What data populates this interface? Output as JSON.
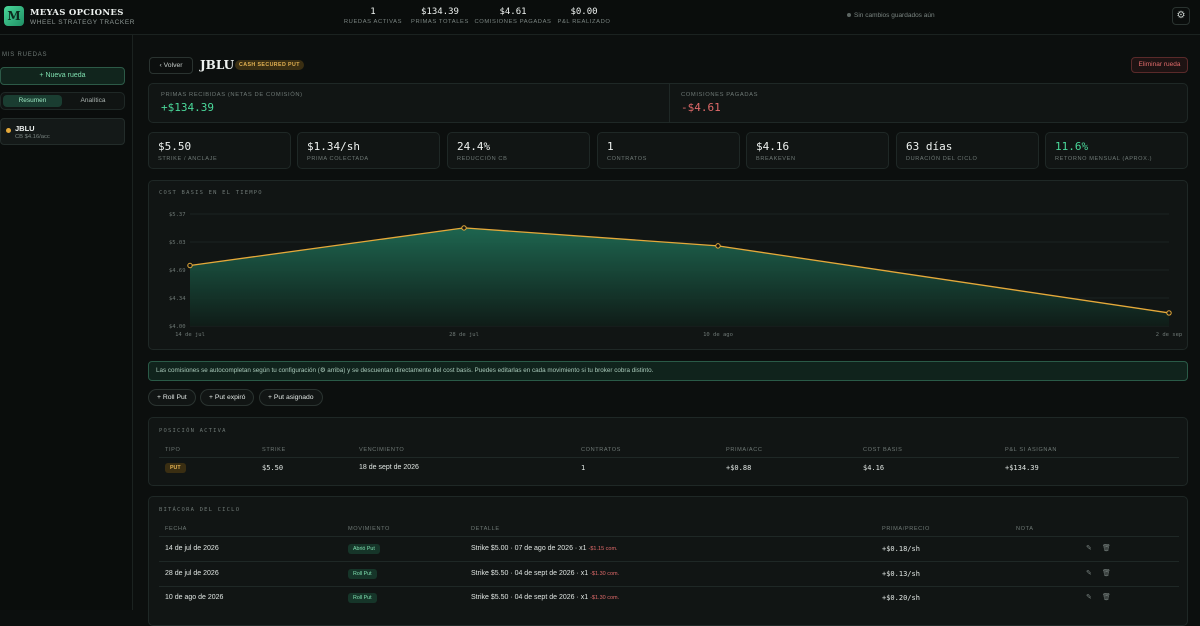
{
  "header": {
    "logo_letter": "M",
    "app_name": "MEYAS OPCIONES",
    "app_subtitle": "WHEEL STRATEGY TRACKER",
    "stats": [
      {
        "value": "1",
        "label": "RUEDAS ACTIVAS"
      },
      {
        "value": "$134.39",
        "label": "PRIMAS TOTALES"
      },
      {
        "value": "$4.61",
        "label": "COMISIONES PAGADAS"
      },
      {
        "value": "$0.00",
        "label": "P&L REALIZADO"
      }
    ],
    "save_status": "Sin cambios guardados aún",
    "settings_icon": "gear-icon"
  },
  "sidebar": {
    "title": "MIS RUEDAS",
    "new_wheel": "Nueva rueda",
    "tabs": [
      "Resumen",
      "Analítica"
    ],
    "wheels": [
      {
        "ticker": "JBLU",
        "subtitle": "CB $4.16/acc"
      }
    ]
  },
  "detail": {
    "back": "Volver",
    "ticker": "JBLU",
    "strategy": "CASH SECURED PUT",
    "delete": "Eliminar rueda",
    "summary": [
      {
        "label": "PRIMAS RECIBIDAS (NETAS DE COMISIÓN)",
        "value": "+$134.39"
      },
      {
        "label": "COMISIONES PAGADAS",
        "value": "-$4.61"
      }
    ],
    "cards": [
      {
        "value": "$5.50",
        "label": "STRIKE / ANCLAJE"
      },
      {
        "value": "$1.34/sh",
        "label": "PRIMA COLECTADA"
      },
      {
        "value": "24.4%",
        "label": "REDUCCIÓN CB"
      },
      {
        "value": "1",
        "label": "CONTRATOS"
      },
      {
        "value": "$4.16",
        "label": "BREAKEVEN"
      },
      {
        "value": "63 días",
        "label": "DURACIÓN DEL CICLO"
      },
      {
        "value": "11.6%",
        "label": "RETORNO MENSUAL (APROX.)"
      }
    ],
    "info_note": "Las comisiones se autocompletan según tu configuración (⚙ arriba) y se descuentan directamente del cost basis. Puedes editarlas en cada movimiento si tu broker cobra distinto.",
    "actions": [
      "Roll Put",
      "Put expiró",
      "Put asignado"
    ],
    "position": {
      "title": "POSICIÓN ACTIVA",
      "headers": [
        "TIPO",
        "STRIKE",
        "VENCIMIENTO",
        "CONTRATOS",
        "PRIMA/ACC",
        "COST BASIS",
        "P&L SI ASIGNAN"
      ],
      "row": [
        "PUT",
        "$5.50",
        "18 de sept de 2026",
        "1",
        "+$0.88",
        "$4.16",
        "+$134.39"
      ]
    },
    "log": {
      "title": "BITÁCORA DEL CICLO",
      "headers": [
        "FECHA",
        "MOVIMIENTO",
        "DETALLE",
        "PRIMA/PRECIO",
        "NOTA"
      ],
      "rows": [
        {
          "date": "14 de jul de 2026",
          "move": "Abrió Put",
          "detail": "Strike $5.00 · 07 de ago de 2026 · x1",
          "comm": "-$1.15 com.",
          "price": "+$0.18/sh"
        },
        {
          "date": "28 de jul de 2026",
          "move": "Roll Put",
          "detail": "Strike $5.50 · 04 de sept de 2026 · x1",
          "comm": "-$1.30 com.",
          "price": "+$0.13/sh"
        },
        {
          "date": "10 de ago de 2026",
          "move": "Roll Put",
          "detail": "Strike $5.50 · 04 de sept de 2026 · x1",
          "comm": "-$1.30 com.",
          "price": "+$0.20/sh"
        }
      ]
    }
  },
  "colors": {
    "accent": "#4ad89a",
    "line": "#e5a93a",
    "negative": "#e06a6a"
  },
  "chart_data": {
    "type": "area",
    "title": "COST BASIS EN EL TIEMPO",
    "x": [
      "14 de jul",
      "28 de jul",
      "10 de ago",
      "2 de sep"
    ],
    "series": [
      {
        "values": [
          4.74,
          5.2,
          4.98,
          4.16
        ]
      }
    ],
    "ylim": [
      4.0,
      5.37
    ],
    "yticks": [
      "$5.37",
      "$5.03",
      "$4.69",
      "$4.34",
      "$4.00"
    ],
    "xticks": [
      "14 de jul",
      "28 de jul",
      "10 de ago",
      "2 de sep"
    ],
    "grid": true
  }
}
